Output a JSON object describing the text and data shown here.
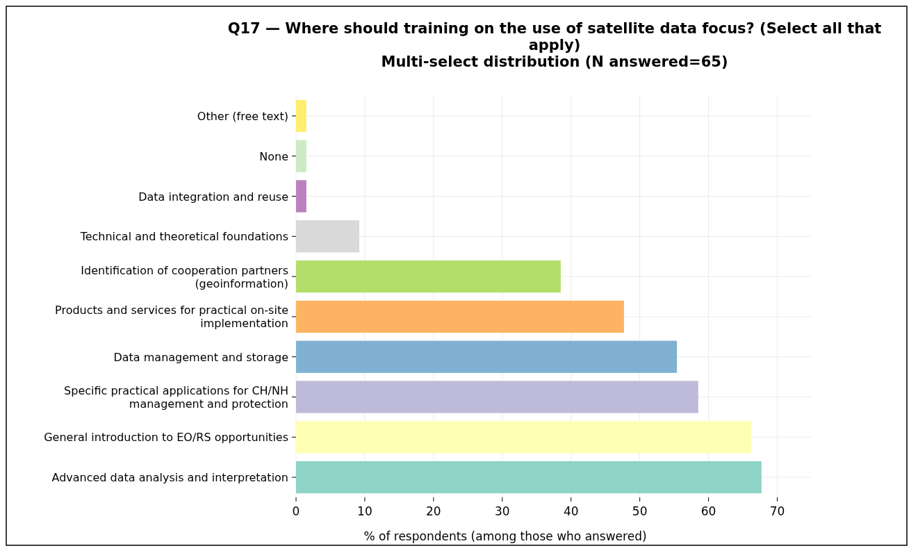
{
  "chart_data": {
    "type": "bar",
    "orientation": "horizontal",
    "title": "Q17 — Where should training on the use of satellite data focus? (Select all that\napply)",
    "subtitle": "Multi-select distribution (N answered=65)",
    "xlabel": "% of respondents (among those who answered)",
    "categories": [
      "Other (free text)",
      "None",
      "Data integration and reuse",
      "Technical and theoretical foundations",
      "Identification of cooperation partners\n(geoinformation)",
      "Products and services for practical on-site\nimplementation",
      "Data management and storage",
      "Specific practical applications for CH/NH\nmanagement and protection",
      "General introduction to EO/RS opportunities",
      "Advanced data analysis and interpretation"
    ],
    "values": [
      1.5,
      1.5,
      1.5,
      9.2,
      38.5,
      47.7,
      55.4,
      58.5,
      66.2,
      67.7
    ],
    "colors": [
      "#ffed6f",
      "#ccebc5",
      "#bc80bd",
      "#d9d9d9",
      "#b3de69",
      "#fdb462",
      "#80b1d3",
      "#bebada",
      "#ffffb3",
      "#8dd3c7"
    ],
    "xlim": [
      0,
      75
    ],
    "xticks": [
      0,
      10,
      20,
      30,
      40,
      50,
      60,
      70
    ],
    "grid": true
  }
}
